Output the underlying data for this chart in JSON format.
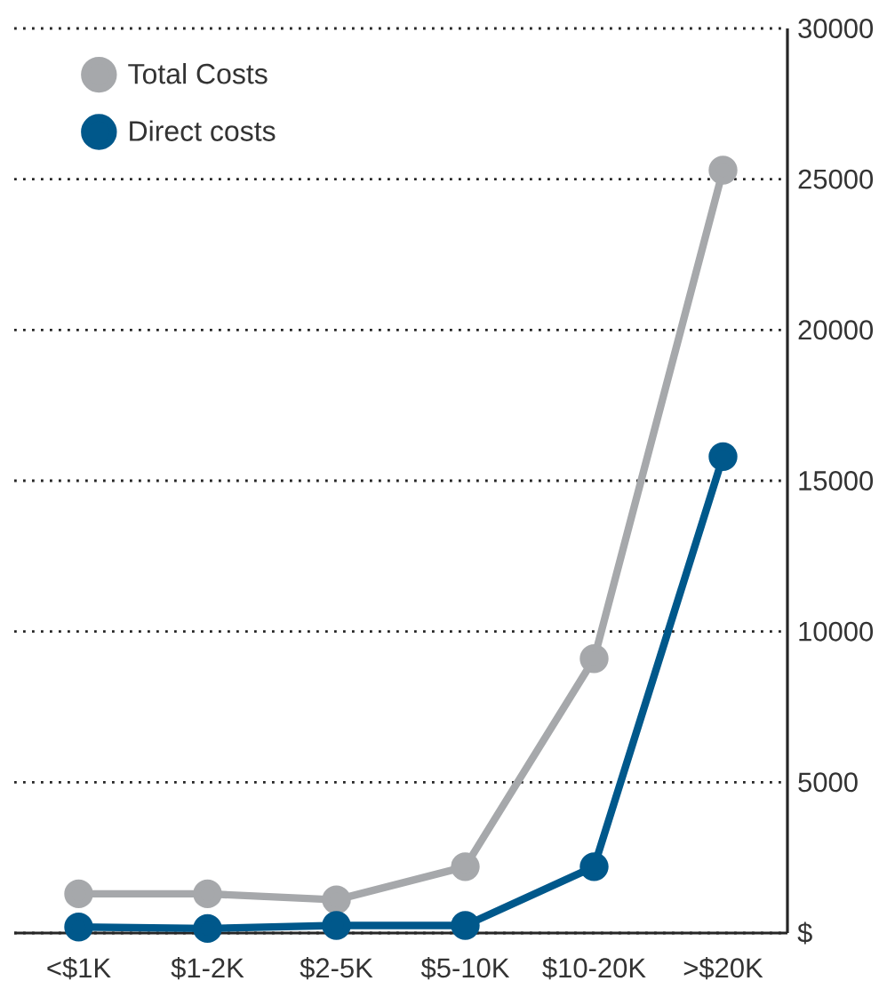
{
  "chart_data": {
    "type": "line",
    "categories": [
      "<$1K",
      "$1-2K",
      "$2-5K",
      "$5-10K",
      "$10-20K",
      ">$20K"
    ],
    "series": [
      {
        "name": "Total Costs",
        "color": "#a6a8ab",
        "values": [
          1300,
          1300,
          1100,
          2200,
          9100,
          25300
        ]
      },
      {
        "name": "Direct costs",
        "color": "#00588b",
        "values": [
          200,
          150,
          250,
          250,
          2200,
          15800
        ]
      }
    ],
    "ylim": [
      0,
      30000
    ],
    "yticks": [
      {
        "value": 0,
        "label": "$"
      },
      5000,
      10000,
      15000,
      20000,
      25000,
      30000
    ],
    "grid": "y",
    "legend": "top left",
    "marker": "circle",
    "line_style": "solid"
  }
}
